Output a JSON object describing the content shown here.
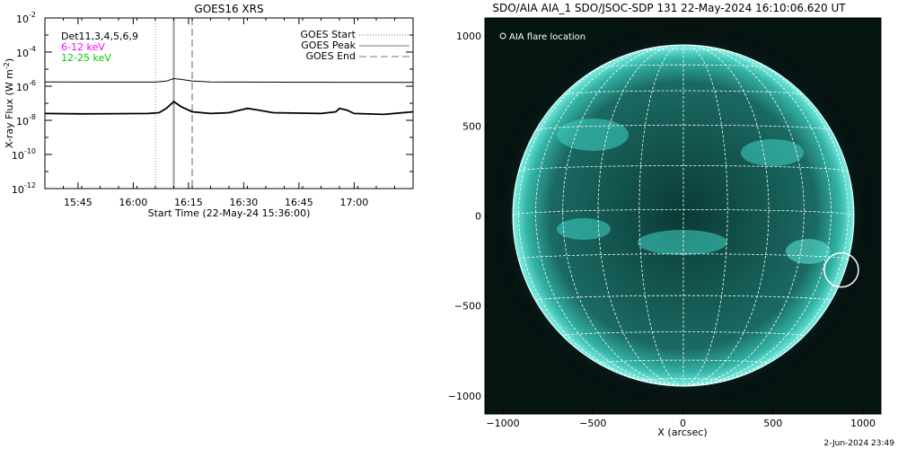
{
  "chart_data": [
    {
      "type": "line",
      "title": "GOES16 XRS",
      "xlabel": "Start Time (22-May-24 15:36:00)",
      "ylabel": "X-ray Flux (W m",
      "ylabel_sup": "-2",
      "ylabel_close": ")",
      "y_scale": "log",
      "x_range_minutes": [
        0,
        100
      ],
      "ylim_exp": [
        -12,
        -2
      ],
      "x_ticks": [
        {
          "m": 9,
          "label": "15:45"
        },
        {
          "m": 24,
          "label": "16:00"
        },
        {
          "m": 39,
          "label": "16:15"
        },
        {
          "m": 54,
          "label": "16:30"
        },
        {
          "m": 69,
          "label": "16:45"
        },
        {
          "m": 84,
          "label": "17:00"
        }
      ],
      "y_ticks": [
        {
          "e": -2,
          "label": "10",
          "sup": "-2"
        },
        {
          "e": -4,
          "label": "10",
          "sup": "-4"
        },
        {
          "e": -6,
          "label": "10",
          "sup": "-6"
        },
        {
          "e": -8,
          "label": "10",
          "sup": "-8"
        },
        {
          "e": -10,
          "label": "10",
          "sup": "-10"
        },
        {
          "e": -12,
          "label": "10",
          "sup": "-12"
        }
      ],
      "legend_left": [
        {
          "text": "Det11,3,4,5,6,9",
          "color": "#000000"
        },
        {
          "text": "6-12 keV",
          "color": "#ff00ff"
        },
        {
          "text": "12-25 keV",
          "color": "#00cc00"
        }
      ],
      "legend_right": [
        {
          "text": "GOES Start",
          "style": "dotted"
        },
        {
          "text": "GOES Peak",
          "style": "solid"
        },
        {
          "text": "GOES End",
          "style": "dashed"
        }
      ],
      "event_lines_minutes": {
        "start": 30,
        "peak": 35,
        "end": 40
      },
      "series": [
        {
          "values_log10": [
            [
              0,
              -5.75
            ],
            [
              30,
              -5.76
            ],
            [
              33,
              -5.7
            ],
            [
              35,
              -5.55
            ],
            [
              37,
              -5.6
            ],
            [
              40,
              -5.7
            ],
            [
              45,
              -5.75
            ],
            [
              100,
              -5.78
            ]
          ]
        },
        {
          "values_log10": [
            [
              0,
              -7.6
            ],
            [
              10,
              -7.62
            ],
            [
              28,
              -7.6
            ],
            [
              31,
              -7.55
            ],
            [
              33,
              -7.3
            ],
            [
              35,
              -6.9
            ],
            [
              37,
              -7.2
            ],
            [
              40,
              -7.5
            ],
            [
              45,
              -7.6
            ],
            [
              50,
              -7.55
            ],
            [
              53,
              -7.4
            ],
            [
              55,
              -7.3
            ],
            [
              58,
              -7.4
            ],
            [
              62,
              -7.55
            ],
            [
              75,
              -7.6
            ],
            [
              79,
              -7.5
            ],
            [
              80,
              -7.3
            ],
            [
              82,
              -7.4
            ],
            [
              84,
              -7.6
            ],
            [
              92,
              -7.65
            ],
            [
              100,
              -7.5
            ]
          ]
        }
      ]
    },
    {
      "type": "image",
      "title": "SDO/AIA AIA_1 SDO/JSOC-SDP 131 22-May-2024 16:10:06.620 UT",
      "xlabel": "X (arcsec)",
      "xlim": [
        -1100,
        1100
      ],
      "ylim": [
        -1100,
        1100
      ],
      "x_ticks": [
        -1000,
        -500,
        0,
        500,
        1000
      ],
      "y_ticks": [
        -1000,
        -500,
        0,
        500,
        1000
      ],
      "legend_text": "AIA flare location",
      "flare_location": {
        "x": 880,
        "y": -300
      }
    }
  ],
  "footer": {
    "timestamp": "2-Jun-2024 23:49"
  }
}
